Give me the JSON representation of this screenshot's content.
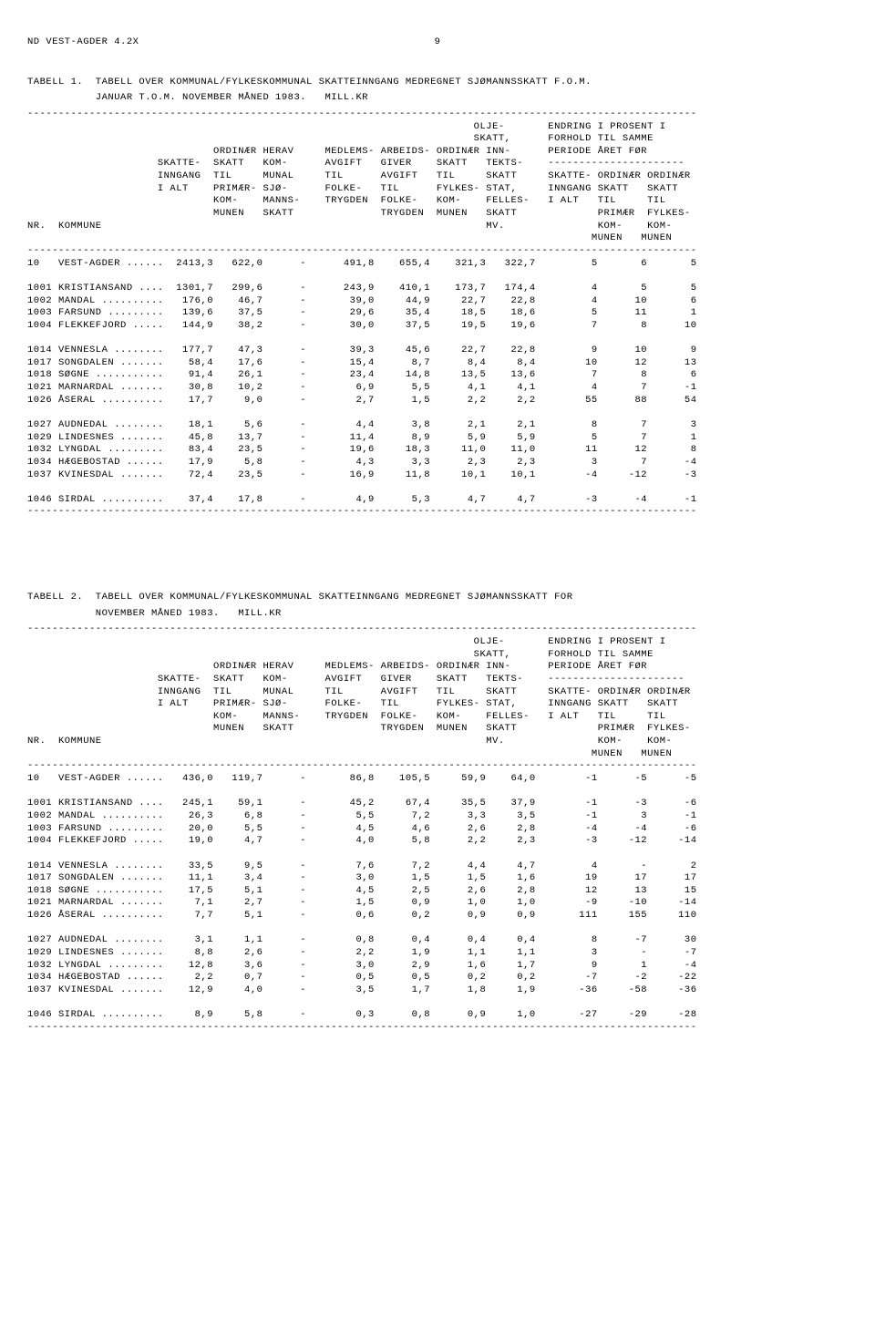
{
  "page": {
    "header_left": "ND VEST-AGDER  4.2X",
    "page_number": "9"
  },
  "table1": {
    "title": "TABELL 1.  TABELL OVER KOMMUNAL/FYLKESKOMMUNAL SKATTEINNGANG MEDREGNET SJØMANNSSKATT F.O.M.",
    "subtitle": "           JANUAR T.O.M. NOVEMBER MÅNED 1983.   MILL.KR",
    "divider": "------------------------------------------------------------------------------------------------------------",
    "header_group1": "                                                                        OLJE-       ENDRING I PROSENT I",
    "header_group2": "                                                                        SKATT,      FORHOLD TIL SAMME",
    "header_group3": "                              ORDINÆR HERAV     MEDLEMS- ARBEIDS- ORDINÆR INN-      PERIODE ÅRET FØR",
    "header_group4": "                     SKATTE-  SKATT   KOM-      AVGIFT   GIVER    SKATT   TEKTS-    ----------------------",
    "header_group5": "                     INNGANG  TIL     MUNAL     TIL      AVGIFT   TIL     SKATT     SKATTE- ORDINÆR ORDINÆR",
    "header_group6": "                     I ALT    PRIMÆR- SJØ-      FOLKE-   TIL      FYLKES- STAT,     INNGANG SKATT   SKATT",
    "header_group7": "                              KOM-    MANNS-    TRYGDEN  FOLKE-   KOM-    FELLES-   I ALT   TIL     TIL",
    "header_group8": "                              MUNEN   SKATT              TRYGDEN  MUNEN   SKATT             PRIMÆR  FYLKES-",
    "header_group9": "NR.  KOMMUNE                                                              MV.               KOM-    KOM-",
    "header_group10": "                                                                                           MUNEN   MUNEN",
    "rows": [
      "10   VEST-AGDER ......  2413,3   622,0      -      491,8    655,4    321,3   322,7         5       6       5",
      "",
      "1001 KRISTIANSAND ....  1301,7   299,6      -      243,9    410,1    173,7   174,4         4       5       5",
      "1002 MANDAL ..........   176,0    46,7      -       39,0     44,9     22,7    22,8         4      10       6",
      "1003 FARSUND .........   139,6    37,5      -       29,6     35,4     18,5    18,6         5      11       1",
      "1004 FLEKKEFJORD .....   144,9    38,2      -       30,0     37,5     19,5    19,6         7       8      10",
      "",
      "1014 VENNESLA ........   177,7    47,3      -       39,3     45,6     22,7    22,8         9      10       9",
      "1017 SONGDALEN .......    58,4    17,6      -       15,4      8,7      8,4     8,4        10      12      13",
      "1018 SØGNE ...........    91,4    26,1      -       23,4     14,8     13,5    13,6         7       8       6",
      "1021 MARNARDAL .......    30,8    10,2      -        6,9      5,5      4,1     4,1         4       7      -1",
      "1026 ÅSERAL ..........    17,7     9,0      -        2,7      1,5      2,2     2,2        55      88      54",
      "",
      "1027 AUDNEDAL ........    18,1     5,6      -        4,4      3,8      2,1     2,1         8       7       3",
      "1029 LINDESNES .......    45,8    13,7      -       11,4      8,9      5,9     5,9         5       7       1",
      "1032 LYNGDAL .........    83,4    23,5      -       19,6     18,3     11,0    11,0        11      12       8",
      "1034 HÆGEBOSTAD ......    17,9     5,8      -        4,3      3,3      2,3     2,3         3       7      -4",
      "1037 KVINESDAL .......    72,4    23,5      -       16,9     11,8     10,1    10,1        -4     -12      -3",
      "",
      "1046 SIRDAL ..........    37,4    17,8      -        4,9      5,3      4,7     4,7        -3      -4      -1"
    ]
  },
  "table2": {
    "title": "TABELL 2.  TABELL OVER KOMMUNAL/FYLKESKOMMUNAL SKATTEINNGANG MEDREGNET SJØMANNSSKATT FOR",
    "subtitle": "           NOVEMBER MÅNED 1983.   MILL.KR",
    "divider": "------------------------------------------------------------------------------------------------------------",
    "header_group1": "                                                                        OLJE-       ENDRING I PROSENT I",
    "header_group2": "                                                                        SKATT,      FORHOLD TIL SAMME",
    "header_group3": "                              ORDINÆR HERAV     MEDLEMS- ARBEIDS- ORDINÆR INN-      PERIODE ÅRET FØR",
    "header_group4": "                     SKATTE-  SKATT   KOM-      AVGIFT   GIVER    SKATT   TEKTS-    ----------------------",
    "header_group5": "                     INNGANG  TIL     MUNAL     TIL      AVGIFT   TIL     SKATT     SKATTE- ORDINÆR ORDINÆR",
    "header_group6": "                     I ALT    PRIMÆR- SJØ-      FOLKE-   TIL      FYLKES- STAT,     INNGANG SKATT   SKATT",
    "header_group7": "                              KOM-    MANNS-    TRYGDEN  FOLKE-   KOM-    FELLES-   I ALT   TIL     TIL",
    "header_group8": "                              MUNEN   SKATT              TRYGDEN  MUNEN   SKATT             PRIMÆR  FYLKES-",
    "header_group9": "NR.  KOMMUNE                                                              MV.               KOM-    KOM-",
    "header_group10": "                                                                                           MUNEN   MUNEN",
    "rows": [
      "10   VEST-AGDER ......   436,0   119,7      -       86,8    105,5     59,9    64,0        -1      -5      -5",
      "",
      "1001 KRISTIANSAND ....   245,1    59,1      -       45,2     67,4     35,5    37,9        -1      -3      -6",
      "1002 MANDAL ..........    26,3     6,8      -        5,5      7,2      3,3     3,5        -1       3      -1",
      "1003 FARSUND .........    20,0     5,5      -        4,5      4,6      2,6     2,8        -4      -4      -6",
      "1004 FLEKKEFJORD .....    19,0     4,7      -        4,0      5,8      2,2     2,3        -3     -12     -14",
      "",
      "1014 VENNESLA ........    33,5     9,5      -        7,6      7,2      4,4     4,7         4       -       2",
      "1017 SONGDALEN .......    11,1     3,4      -        3,0      1,5      1,5     1,6        19      17      17",
      "1018 SØGNE ...........    17,5     5,1      -        4,5      2,5      2,6     2,8        12      13      15",
      "1021 MARNARDAL .......     7,1     2,7      -        1,5      0,9      1,0     1,0        -9     -10     -14",
      "1026 ÅSERAL ..........     7,7     5,1      -        0,6      0,2      0,9     0,9       111     155     110",
      "",
      "1027 AUDNEDAL ........     3,1     1,1      -        0,8      0,4      0,4     0,4         8      -7      30",
      "1029 LINDESNES .......     8,8     2,6      -        2,2      1,9      1,1     1,1         3       -      -7",
      "1032 LYNGDAL .........    12,8     3,6      -        3,0      2,9      1,6     1,7         9       1      -4",
      "1034 HÆGEBOSTAD ......     2,2     0,7      -        0,5      0,5      0,2     0,2        -7      -2     -22",
      "1037 KVINESDAL .......    12,9     4,0      -        3,5      1,7      1,8     1,9       -36     -58     -36",
      "",
      "1046 SIRDAL ..........     8,9     5,8      -        0,3      0,8      0,9     1,0       -27     -29     -28"
    ]
  }
}
